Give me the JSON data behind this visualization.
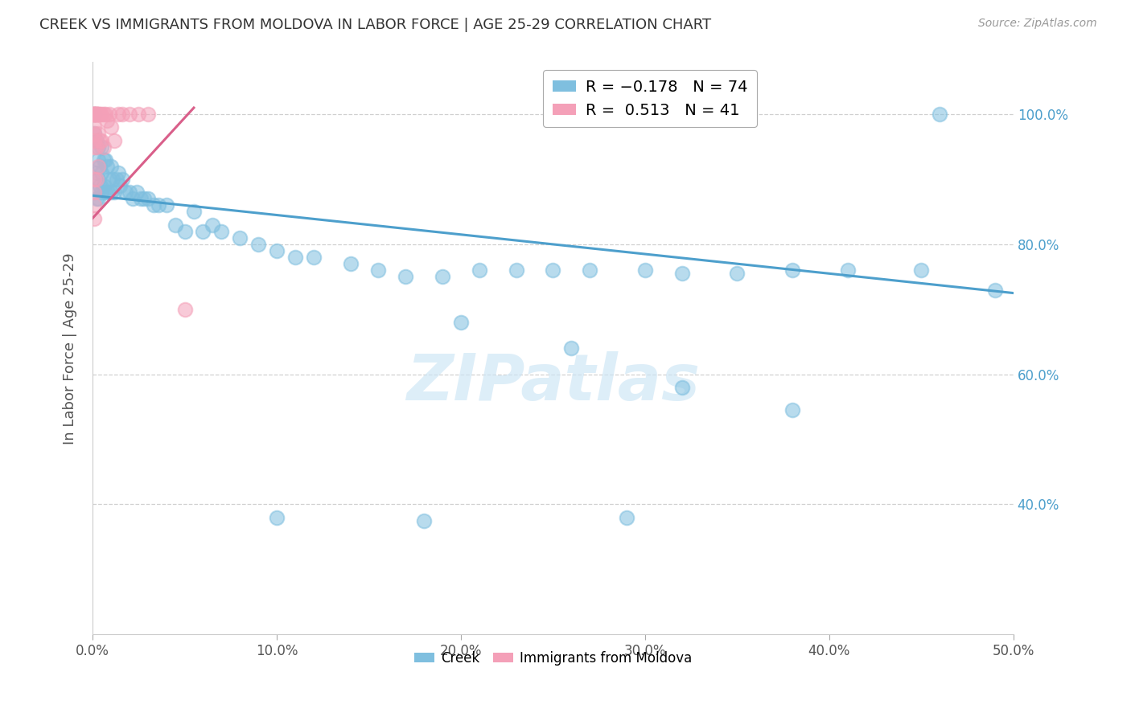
{
  "title": "CREEK VS IMMIGRANTS FROM MOLDOVA IN LABOR FORCE | AGE 25-29 CORRELATION CHART",
  "source": "Source: ZipAtlas.com",
  "ylabel": "In Labor Force | Age 25-29",
  "xlim": [
    0.0,
    0.5
  ],
  "ylim": [
    0.2,
    1.08
  ],
  "xtick_labels": [
    "0.0%",
    "10.0%",
    "20.0%",
    "30.0%",
    "40.0%",
    "50.0%"
  ],
  "xtick_vals": [
    0.0,
    0.1,
    0.2,
    0.3,
    0.4,
    0.5
  ],
  "ytick_labels": [
    "40.0%",
    "60.0%",
    "80.0%",
    "100.0%"
  ],
  "ytick_vals": [
    0.4,
    0.6,
    0.8,
    1.0
  ],
  "blue_color": "#7fbfdf",
  "pink_color": "#f4a0b8",
  "blue_line_color": "#4d9fcc",
  "pink_line_color": "#d95f8a",
  "legend_blue_label": "R = −0.178   N = 74",
  "legend_pink_label": "R =  0.513   N = 41",
  "watermark": "ZIPatlas",
  "creek_x": [
    0.001,
    0.001,
    0.001,
    0.002,
    0.002,
    0.002,
    0.003,
    0.003,
    0.003,
    0.003,
    0.004,
    0.004,
    0.005,
    0.005,
    0.005,
    0.006,
    0.006,
    0.007,
    0.007,
    0.008,
    0.008,
    0.009,
    0.01,
    0.01,
    0.011,
    0.012,
    0.013,
    0.014,
    0.015,
    0.016,
    0.018,
    0.02,
    0.022,
    0.024,
    0.026,
    0.028,
    0.03,
    0.033,
    0.036,
    0.04,
    0.045,
    0.05,
    0.055,
    0.06,
    0.065,
    0.07,
    0.08,
    0.09,
    0.1,
    0.11,
    0.12,
    0.14,
    0.155,
    0.17,
    0.19,
    0.21,
    0.23,
    0.25,
    0.27,
    0.3,
    0.32,
    0.35,
    0.38,
    0.41,
    0.45,
    0.49,
    0.2,
    0.26,
    0.32,
    0.38,
    0.1,
    0.18,
    0.29,
    0.46
  ],
  "creek_y": [
    1.0,
    0.97,
    0.88,
    0.96,
    0.91,
    0.87,
    0.95,
    0.93,
    0.9,
    0.87,
    0.92,
    0.89,
    0.95,
    0.91,
    0.88,
    0.93,
    0.89,
    0.93,
    0.88,
    0.92,
    0.88,
    0.9,
    0.92,
    0.88,
    0.9,
    0.88,
    0.9,
    0.91,
    0.89,
    0.9,
    0.88,
    0.88,
    0.87,
    0.88,
    0.87,
    0.87,
    0.87,
    0.86,
    0.86,
    0.86,
    0.83,
    0.82,
    0.85,
    0.82,
    0.83,
    0.82,
    0.81,
    0.8,
    0.79,
    0.78,
    0.78,
    0.77,
    0.76,
    0.75,
    0.75,
    0.76,
    0.76,
    0.76,
    0.76,
    0.76,
    0.755,
    0.755,
    0.76,
    0.76,
    0.76,
    0.73,
    0.68,
    0.64,
    0.58,
    0.545,
    0.38,
    0.375,
    0.38,
    1.0
  ],
  "moldova_x": [
    0.001,
    0.001,
    0.001,
    0.001,
    0.001,
    0.001,
    0.001,
    0.001,
    0.001,
    0.001,
    0.001,
    0.001,
    0.001,
    0.001,
    0.002,
    0.002,
    0.002,
    0.002,
    0.002,
    0.002,
    0.003,
    0.003,
    0.003,
    0.003,
    0.004,
    0.004,
    0.005,
    0.005,
    0.006,
    0.006,
    0.007,
    0.008,
    0.009,
    0.01,
    0.012,
    0.014,
    0.016,
    0.02,
    0.025,
    0.03,
    0.05
  ],
  "moldova_y": [
    1.0,
    1.0,
    1.0,
    1.0,
    1.0,
    1.0,
    0.98,
    0.97,
    0.96,
    0.95,
    0.9,
    0.88,
    0.86,
    0.84,
    1.0,
    1.0,
    1.0,
    1.0,
    0.95,
    0.9,
    1.0,
    1.0,
    0.97,
    0.92,
    1.0,
    0.96,
    1.0,
    0.96,
    1.0,
    0.95,
    1.0,
    0.99,
    1.0,
    0.98,
    0.96,
    1.0,
    1.0,
    1.0,
    1.0,
    1.0,
    0.7
  ],
  "blue_line_x0": 0.0,
  "blue_line_y0": 0.875,
  "blue_line_x1": 0.5,
  "blue_line_y1": 0.725,
  "pink_line_x0": 0.0,
  "pink_line_y0": 0.84,
  "pink_line_x1": 0.055,
  "pink_line_y1": 1.01
}
